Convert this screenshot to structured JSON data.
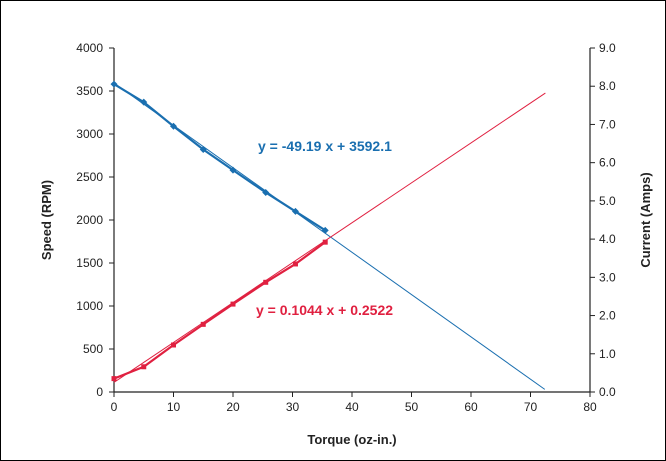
{
  "chart_data": {
    "type": "scatter",
    "title": "",
    "xlabel": "Torque (oz-in.)",
    "ylabel_left": "Speed (RPM)",
    "ylabel_right": "Current (Amps)",
    "xlim": [
      0,
      80
    ],
    "ylim_left": [
      0,
      4000
    ],
    "ylim_right": [
      0,
      9.0
    ],
    "x_ticks": [
      "0",
      "10",
      "20",
      "30",
      "40",
      "50",
      "60",
      "70",
      "80"
    ],
    "y_left_ticks": [
      "0",
      "500",
      "1000",
      "1500",
      "2000",
      "2500",
      "3000",
      "3500",
      "4000"
    ],
    "y_right_ticks": [
      "0.0",
      "1.0",
      "2.0",
      "3.0",
      "4.0",
      "5.0",
      "6.0",
      "7.0",
      "8.0",
      "9.0"
    ],
    "grid": false,
    "series": [
      {
        "axis": "left",
        "color": "#1a6fb0",
        "x": [
          0,
          5,
          10,
          15,
          20,
          25.5,
          30.5,
          35.5
        ],
        "y": [
          3580,
          3370,
          3090,
          2820,
          2580,
          2320,
          2100,
          1880
        ],
        "trendline": {
          "slope": -49.19,
          "intercept": 3592.1,
          "x_end": 72.4
        },
        "equation": "y = -49.19  x + 3592.1"
      },
      {
        "axis": "right",
        "color": "#e02040",
        "x": [
          0,
          5,
          10,
          15,
          20,
          25.5,
          30.5,
          35.5
        ],
        "y": [
          0.35,
          0.66,
          1.23,
          1.77,
          2.3,
          2.87,
          3.35,
          3.92
        ],
        "trendline": {
          "slope": 0.1044,
          "intercept": 0.2522,
          "x_end": 72.5
        },
        "equation": "y = 0.1044  x + 0.2522"
      }
    ]
  }
}
